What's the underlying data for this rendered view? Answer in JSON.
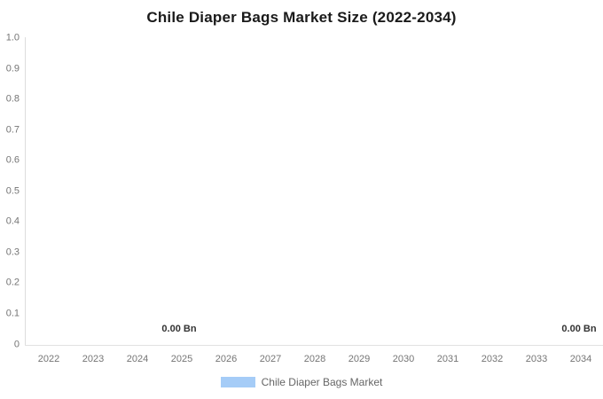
{
  "chart": {
    "title": "Chile Diaper Bags Market Size (2022-2034)"
  },
  "chart_data": {
    "type": "bar",
    "title": "Chile Diaper Bags Market Size (2022-2034)",
    "categories": [
      "2022",
      "2023",
      "2024",
      "2025",
      "2026",
      "2027",
      "2028",
      "2029",
      "2030",
      "2031",
      "2032",
      "2033",
      "2034"
    ],
    "series": [
      {
        "name": "Chile Diaper Bags Market",
        "color": "#a5ccf7",
        "values": [
          0,
          0,
          0,
          0,
          0,
          0,
          0,
          0,
          0,
          0,
          0,
          0,
          0
        ]
      }
    ],
    "xlabel": "",
    "ylabel": "",
    "ylim": [
      0,
      1.0
    ],
    "y_ticks": [
      "1.0",
      "0.9",
      "0.8",
      "0.7",
      "0.6",
      "0.5",
      "0.4",
      "0.3",
      "0.2",
      "0.1",
      "0"
    ],
    "grid": false,
    "legend_position": "bottom",
    "unit": "Bn",
    "data_labels": [
      {
        "text": "0.00 Bn",
        "near_category": "2025"
      },
      {
        "text": "0.00 Bn",
        "near_category": "2034"
      }
    ]
  },
  "legend": {
    "items": [
      {
        "label": "Chile Diaper Bags Market",
        "swatch_color": "#a5ccf7"
      }
    ]
  },
  "colors": {
    "background": "#ffffff",
    "title_text": "#1a1a1a",
    "axis_line": "#dddddd",
    "tick_label": "#757575",
    "data_label": "#333333",
    "legend_text": "#666666",
    "series_blue": "#a5ccf7"
  }
}
